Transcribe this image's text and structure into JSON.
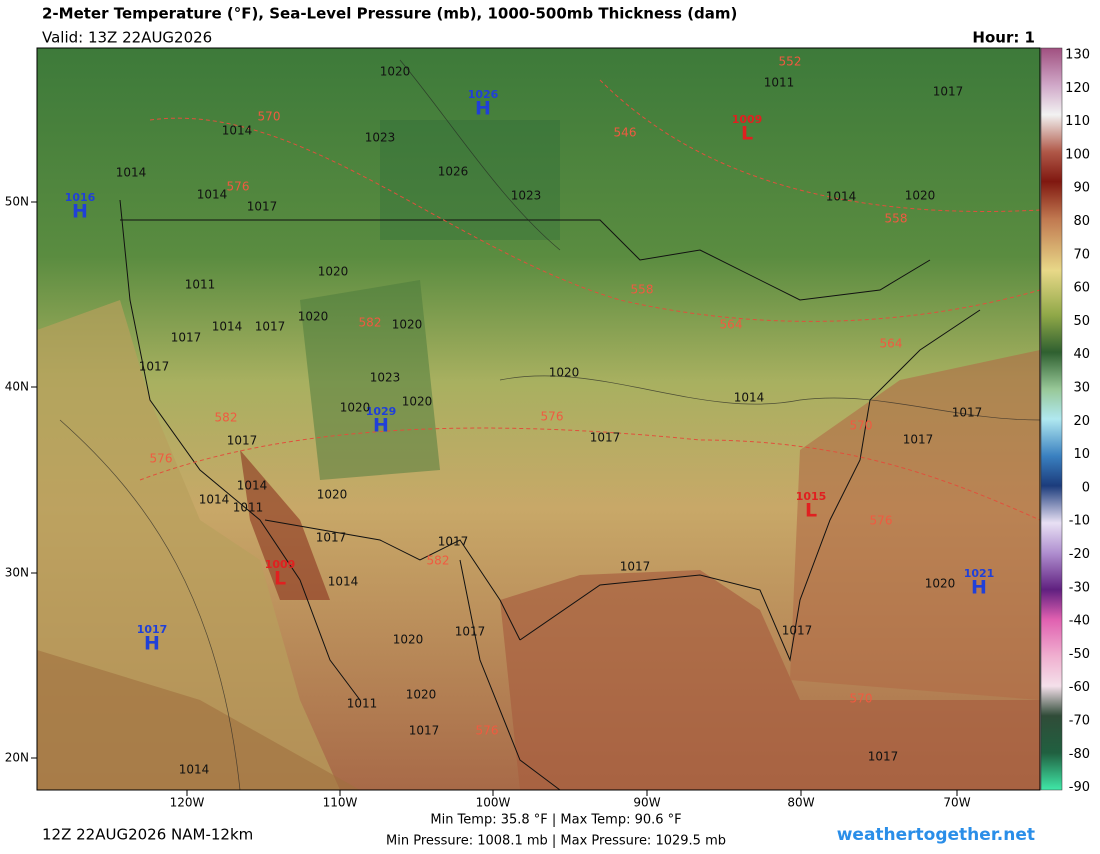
{
  "header": {
    "title": "2-Meter Temperature (°F), Sea-Level Pressure (mb), 1000-500mb Thickness (dam)",
    "valid": "Valid: 13Z 22AUG2026",
    "hour": "Hour: 1"
  },
  "colorbar": {
    "labels": [
      "130",
      "120",
      "110",
      "100",
      "90",
      "80",
      "70",
      "60",
      "50",
      "40",
      "30",
      "20",
      "10",
      "0",
      "-10",
      "-20",
      "-30",
      "-40",
      "-50",
      "-60",
      "-70",
      "-80",
      "-90"
    ]
  },
  "axes": {
    "lat_labels": [
      "50N",
      "40N",
      "30N",
      "20N"
    ],
    "lon_labels": [
      "120W",
      "110W",
      "100W",
      "90W",
      "80W",
      "70W"
    ]
  },
  "pressure_centers": [
    {
      "type": "H",
      "value": "1026"
    },
    {
      "type": "H",
      "value": "1016"
    },
    {
      "type": "L",
      "value": "1009"
    },
    {
      "type": "H",
      "value": "1029"
    },
    {
      "type": "L",
      "value": "1015"
    },
    {
      "type": "L",
      "value": "1009"
    },
    {
      "type": "H",
      "value": "1021"
    },
    {
      "type": "H",
      "value": "1017"
    }
  ],
  "isobar_labels": [
    "1020",
    "1011",
    "1017",
    "1014",
    "1023",
    "1014",
    "1026",
    "1023",
    "1014",
    "1017",
    "1014",
    "1020",
    "1020",
    "1011",
    "1020",
    "1020",
    "1017",
    "1014",
    "1017",
    "1017",
    "1020",
    "1023",
    "1020",
    "1020",
    "1014",
    "1017",
    "1017",
    "1017",
    "1017",
    "1014",
    "1011",
    "1014",
    "1020",
    "1017",
    "1017",
    "1017",
    "1014",
    "1020",
    "1020",
    "1017",
    "1017",
    "1020",
    "1011",
    "1017",
    "1014",
    "1017"
  ],
  "thickness_labels": [
    "552",
    "570",
    "546",
    "576",
    "558",
    "558",
    "582",
    "564",
    "564",
    "576",
    "582",
    "570",
    "576",
    "576",
    "582",
    "576",
    "570"
  ],
  "footer": {
    "run": "12Z 22AUG2026 NAM-12km",
    "temp_range": "Min Temp:  35.8 °F | Max Temp:  90.6 °F",
    "pressure_range": "Min Pressure: 1008.1 mb | Max Pressure: 1029.5 mb",
    "site": "weathertogether.net"
  }
}
